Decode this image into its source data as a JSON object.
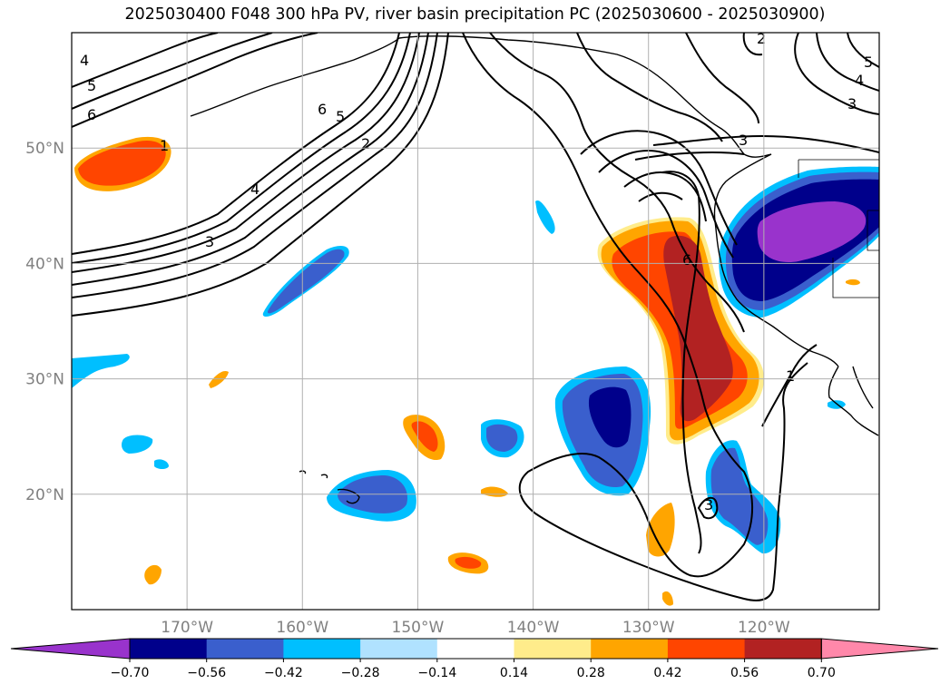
{
  "title": "2025030400 F048 300 hPa PV, river basin precipitation PC (2025030600 - 2025030900)",
  "map": {
    "projection": "PlateCarree",
    "lon_range": [
      -180,
      -110
    ],
    "lat_range": [
      10,
      60
    ],
    "gridlines": true,
    "lon_ticks": [
      {
        "lon": -170,
        "label": "170°W"
      },
      {
        "lon": -160,
        "label": "160°W"
      },
      {
        "lon": -150,
        "label": "150°W"
      },
      {
        "lon": -140,
        "label": "140°W"
      },
      {
        "lon": -130,
        "label": "130°W"
      },
      {
        "lon": -120,
        "label": "120°W"
      }
    ],
    "lat_ticks": [
      {
        "lat": 20,
        "label": "20°N"
      },
      {
        "lat": 30,
        "label": "30°N"
      },
      {
        "lat": 40,
        "label": "40°N"
      },
      {
        "lat": 50,
        "label": "50°N"
      }
    ]
  },
  "pv_contour_labels": [
    "1",
    "2",
    "3",
    "4",
    "5",
    "6"
  ],
  "colorbar": {
    "levels": [
      "−0.70",
      "−0.56",
      "−0.42",
      "−0.28",
      "−0.14",
      "0.14",
      "0.28",
      "0.42",
      "0.56",
      "0.70"
    ],
    "colors": [
      "#9933cc",
      "#00008b",
      "#3a5fcd",
      "#00bfff",
      "#b0e2ff",
      "#ffffff",
      "#ffec8b",
      "#ffa500",
      "#ff4500",
      "#b22222",
      "#ff88aa"
    ],
    "extend": "both"
  },
  "colors": {
    "grid": "#b0b0b0",
    "tick_label": "#808080",
    "contour": "#000000",
    "coast": "#000000"
  }
}
